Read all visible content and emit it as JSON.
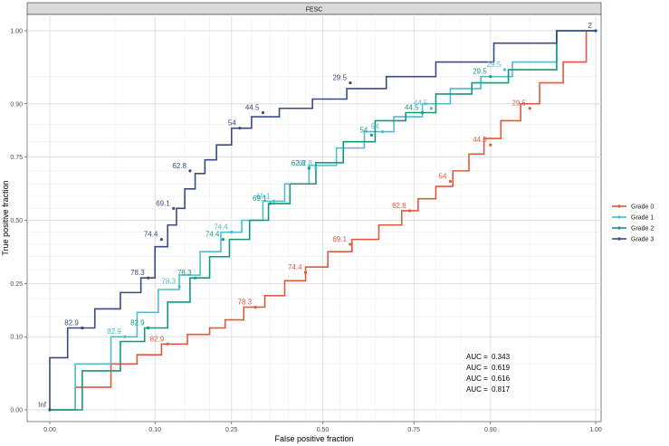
{
  "chart_data": {
    "type": "line",
    "panel_title": "FESC",
    "xlabel": "False positive fraction",
    "ylabel": "True positive fraction",
    "xlim": [
      0,
      1
    ],
    "ylim": [
      0,
      1
    ],
    "x_ticks": [
      "0.00",
      "0.10",
      "0.25",
      "0.50",
      "0.75",
      "0.90",
      "1.00"
    ],
    "y_ticks": [
      "0.00",
      "0.10",
      "0.25",
      "0.50",
      "0.75",
      "0.90",
      "1.00"
    ],
    "legend_position": "right",
    "colors": {
      "Grade 0": "#e4573d",
      "Grade 1": "#4ebcd1",
      "Grade 2": "#15977d",
      "Grade 3": "#3b4a83"
    },
    "series": [
      {
        "name": "Grade 0",
        "auc_label": "AUC =",
        "auc": "0.343",
        "points": [
          [
            0,
            0
          ],
          [
            0.03,
            0.02
          ],
          [
            0.06,
            0.05
          ],
          [
            0.09,
            0.065
          ],
          [
            0.13,
            0.085
          ],
          [
            0.18,
            0.105
          ],
          [
            0.22,
            0.12
          ],
          [
            0.25,
            0.14
          ],
          [
            0.31,
            0.175
          ],
          [
            0.36,
            0.21
          ],
          [
            0.42,
            0.26
          ],
          [
            0.48,
            0.31
          ],
          [
            0.55,
            0.37
          ],
          [
            0.62,
            0.42
          ],
          [
            0.7,
            0.48
          ],
          [
            0.74,
            0.54
          ],
          [
            0.78,
            0.59
          ],
          [
            0.82,
            0.64
          ],
          [
            0.85,
            0.7
          ],
          [
            0.88,
            0.76
          ],
          [
            0.9,
            0.81
          ],
          [
            0.93,
            0.86
          ],
          [
            0.95,
            0.9
          ],
          [
            0.97,
            0.94
          ],
          [
            0.99,
            0.97
          ],
          [
            1.0,
            1.0
          ]
        ],
        "cut_labels": [
          {
            "text": "82.9",
            "x": 0.12,
            "y": 0.085
          },
          {
            "text": "78.3",
            "x": 0.31,
            "y": 0.175
          },
          {
            "text": "74.4",
            "x": 0.45,
            "y": 0.29
          },
          {
            "text": "69.1",
            "x": 0.58,
            "y": 0.4
          },
          {
            "text": "62.8",
            "x": 0.74,
            "y": 0.54
          },
          {
            "text": "54",
            "x": 0.83,
            "y": 0.66
          },
          {
            "text": "44.5",
            "x": 0.9,
            "y": 0.79
          },
          {
            "text": "29.5",
            "x": 0.95,
            "y": 0.89
          }
        ]
      },
      {
        "name": "Grade 1",
        "auc_label": "AUC =",
        "auc": "0.619",
        "points": [
          [
            0,
            0
          ],
          [
            0.03,
            0.05
          ],
          [
            0.06,
            0.1
          ],
          [
            0.09,
            0.16
          ],
          [
            0.12,
            0.23
          ],
          [
            0.16,
            0.28
          ],
          [
            0.2,
            0.37
          ],
          [
            0.25,
            0.45
          ],
          [
            0.3,
            0.5
          ],
          [
            0.36,
            0.58
          ],
          [
            0.42,
            0.65
          ],
          [
            0.5,
            0.72
          ],
          [
            0.58,
            0.78
          ],
          [
            0.66,
            0.83
          ],
          [
            0.74,
            0.87
          ],
          [
            0.8,
            0.9
          ],
          [
            0.86,
            0.93
          ],
          [
            0.91,
            0.95
          ],
          [
            0.95,
            0.97
          ],
          [
            1.0,
            1.0
          ]
        ],
        "cut_labels": [
          {
            "text": "82.9",
            "x": 0.06,
            "y": 0.1
          },
          {
            "text": "78.3",
            "x": 0.14,
            "y": 0.24
          },
          {
            "text": "74.4",
            "x": 0.25,
            "y": 0.45
          },
          {
            "text": "69.1",
            "x": 0.36,
            "y": 0.58
          },
          {
            "text": "62.8",
            "x": 0.48,
            "y": 0.71
          },
          {
            "text": "54",
            "x": 0.67,
            "y": 0.83
          },
          {
            "text": "44.5",
            "x": 0.79,
            "y": 0.89
          },
          {
            "text": "29.5",
            "x": 0.92,
            "y": 0.96
          }
        ]
      },
      {
        "name": "Grade 2",
        "auc_label": "AUC =",
        "auc": "0.616",
        "points": [
          [
            0,
            0
          ],
          [
            0.04,
            0.04
          ],
          [
            0.07,
            0.09
          ],
          [
            0.1,
            0.12
          ],
          [
            0.14,
            0.19
          ],
          [
            0.18,
            0.27
          ],
          [
            0.22,
            0.35
          ],
          [
            0.27,
            0.42
          ],
          [
            0.32,
            0.5
          ],
          [
            0.37,
            0.57
          ],
          [
            0.44,
            0.65
          ],
          [
            0.52,
            0.73
          ],
          [
            0.6,
            0.8
          ],
          [
            0.7,
            0.86
          ],
          [
            0.76,
            0.88
          ],
          [
            0.84,
            0.92
          ],
          [
            0.9,
            0.94
          ],
          [
            0.95,
            0.96
          ],
          [
            1.0,
            1.0
          ]
        ],
        "cut_labels": [
          {
            "text": "82.9",
            "x": 0.09,
            "y": 0.12
          },
          {
            "text": "78.3",
            "x": 0.17,
            "y": 0.27
          },
          {
            "text": "74.4",
            "x": 0.23,
            "y": 0.42
          },
          {
            "text": "69.1",
            "x": 0.35,
            "y": 0.57
          },
          {
            "text": "62.8",
            "x": 0.46,
            "y": 0.71
          },
          {
            "text": "54",
            "x": 0.64,
            "y": 0.82
          },
          {
            "text": "44.5",
            "x": 0.77,
            "y": 0.88
          },
          {
            "text": "29.5",
            "x": 0.9,
            "y": 0.95
          }
        ]
      },
      {
        "name": "Grade 3",
        "auc_label": "AUC =",
        "auc": "0.817",
        "points": [
          [
            0,
            0
          ],
          [
            0,
            0.06
          ],
          [
            0.02,
            0.12
          ],
          [
            0.04,
            0.17
          ],
          [
            0.07,
            0.22
          ],
          [
            0.09,
            0.27
          ],
          [
            0.11,
            0.39
          ],
          [
            0.13,
            0.48
          ],
          [
            0.14,
            0.55
          ],
          [
            0.16,
            0.63
          ],
          [
            0.18,
            0.69
          ],
          [
            0.2,
            0.74
          ],
          [
            0.23,
            0.79
          ],
          [
            0.27,
            0.84
          ],
          [
            0.33,
            0.87
          ],
          [
            0.42,
            0.89
          ],
          [
            0.52,
            0.91
          ],
          [
            0.62,
            0.93
          ],
          [
            0.74,
            0.95
          ],
          [
            0.86,
            0.97
          ],
          [
            0.95,
            0.99
          ],
          [
            1.0,
            1.0
          ]
        ],
        "cut_labels": [
          {
            "text": "Inf",
            "x": 0.0,
            "y": 0.0
          },
          {
            "text": "82.9",
            "x": 0.02,
            "y": 0.12
          },
          {
            "text": "78.3",
            "x": 0.09,
            "y": 0.27
          },
          {
            "text": "74.4",
            "x": 0.11,
            "y": 0.42
          },
          {
            "text": "69.1",
            "x": 0.13,
            "y": 0.55
          },
          {
            "text": "62.8",
            "x": 0.16,
            "y": 0.7
          },
          {
            "text": "54",
            "x": 0.27,
            "y": 0.84
          },
          {
            "text": "44.5",
            "x": 0.33,
            "y": 0.88
          },
          {
            "text": "29.5",
            "x": 0.58,
            "y": 0.94
          },
          {
            "text": "2",
            "x": 1.0,
            "y": 1.0
          }
        ]
      }
    ]
  }
}
